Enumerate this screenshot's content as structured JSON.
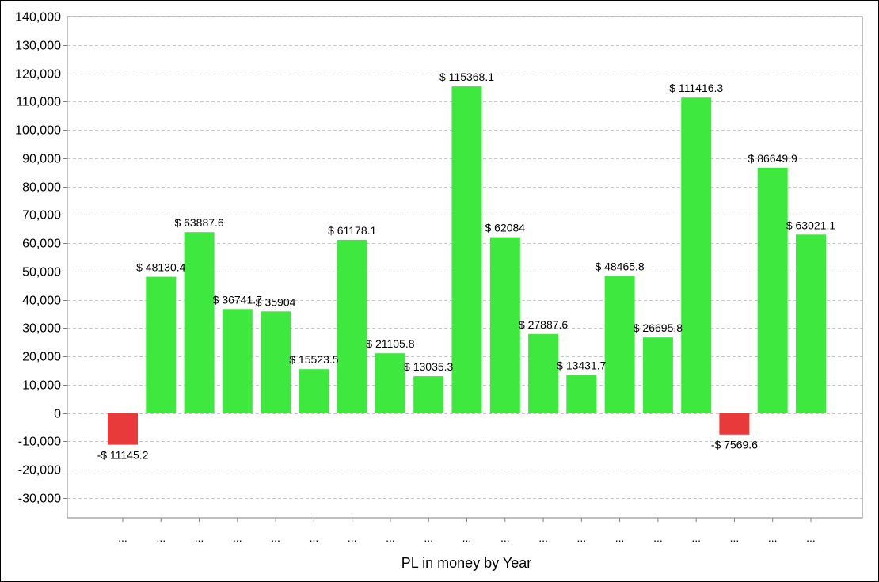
{
  "chart_data": {
    "type": "bar",
    "xlabel": "PL in money by Year",
    "ylabel": "",
    "ylim": [
      -37000,
      140000
    ],
    "yticks": [
      140000,
      130000,
      120000,
      110000,
      100000,
      90000,
      80000,
      70000,
      60000,
      50000,
      40000,
      30000,
      20000,
      10000,
      0,
      -10000,
      -20000,
      -30000
    ],
    "ytick_labels": [
      "140,000",
      "130,000",
      "120,000",
      "110,000",
      "100,000",
      "90,000",
      "80,000",
      "70,000",
      "60,000",
      "50,000",
      "40,000",
      "30,000",
      "20,000",
      "10,000",
      "0",
      "-10,000",
      "-20,000",
      "-30,000"
    ],
    "grid": true,
    "legend": "none",
    "categories": [
      "...",
      "...",
      "...",
      "...",
      "...",
      "...",
      "...",
      "...",
      "...",
      "...",
      "...",
      "...",
      "...",
      "...",
      "...",
      "...",
      "...",
      "...",
      "..."
    ],
    "values": [
      -11145.2,
      48130.4,
      63887.6,
      36741.7,
      35904,
      15523.5,
      61178.1,
      21105.8,
      13035.3,
      115368.1,
      62084,
      27887.6,
      13431.7,
      48465.8,
      26695.8,
      111416.3,
      -7569.6,
      86649.9,
      63021.1
    ],
    "data_labels": [
      "-$ 11145.2",
      "$ 48130.4",
      "$ 63887.6",
      "$ 36741.7",
      "$ 35904",
      "$ 15523.5",
      "$ 61178.1",
      "$ 21105.8",
      "$ 13035.3",
      "$ 115368.1",
      "$ 62084",
      "$ 27887.6",
      "$ 13431.7",
      "$ 48465.8",
      "$ 26695.8",
      "$ 111416.3",
      "-$ 7569.6",
      "$ 86649.9",
      "$ 63021.1"
    ],
    "colors": {
      "positive": "#3ee83e",
      "negative": "#e83a3a",
      "grid": "#c8c8c8",
      "axis": "#808080"
    }
  }
}
